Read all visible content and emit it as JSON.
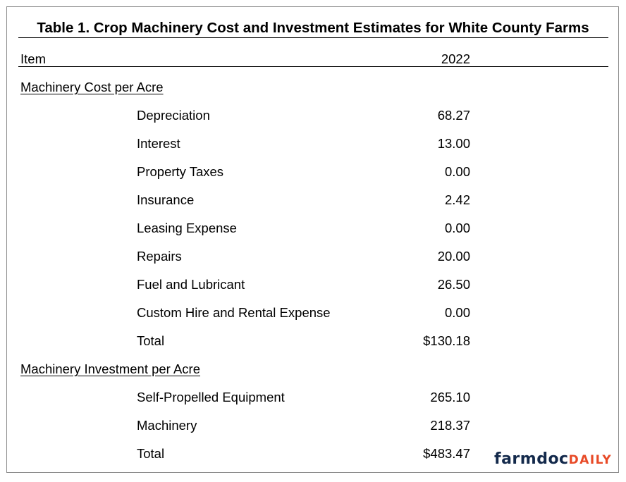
{
  "title": "Table 1.  Crop Machinery Cost and Investment Estimates for White County Farms",
  "header": {
    "item": "Item",
    "year": "2022"
  },
  "sections": [
    {
      "heading": "Machinery Cost per Acre",
      "rows": [
        {
          "label": "Depreciation",
          "value": "68.27"
        },
        {
          "label": "Interest",
          "value": "13.00"
        },
        {
          "label": "Property Taxes",
          "value": "0.00"
        },
        {
          "label": "Insurance",
          "value": "2.42"
        },
        {
          "label": "Leasing Expense",
          "value": "0.00"
        },
        {
          "label": "Repairs",
          "value": "20.00"
        },
        {
          "label": "Fuel and Lubricant",
          "value": "26.50"
        },
        {
          "label": "Custom Hire and Rental Expense",
          "value": "0.00"
        },
        {
          "label": "Total",
          "value": "$130.18"
        }
      ]
    },
    {
      "heading": "Machinery Investment per Acre",
      "rows": [
        {
          "label": "Self-Propelled Equipment",
          "value": "265.10"
        },
        {
          "label": "Machinery",
          "value": "218.37"
        },
        {
          "label": "Total",
          "value": "$483.47"
        }
      ]
    }
  ],
  "logo": {
    "part1": "farmdoc",
    "part2": "DAILY"
  },
  "colors": {
    "logo_primary": "#13294b",
    "logo_accent": "#e84a27",
    "frame": "#8c8c8c"
  }
}
